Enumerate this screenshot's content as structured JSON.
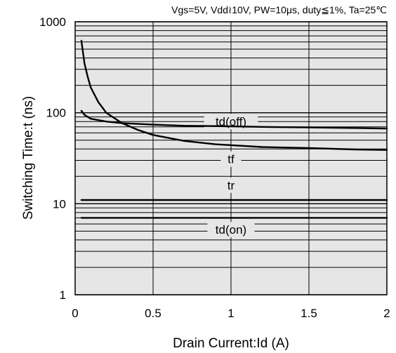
{
  "chart_data": {
    "type": "line",
    "conditions": "Vgs=5V, Vdd≀10V, PW=10μs, duty≦1%, Ta=25℃",
    "xlabel": "Drain Current:Id  (A)",
    "ylabel": "Switching Time:t  (ns)",
    "xlim": [
      0,
      2
    ],
    "ylim": [
      1,
      1000
    ],
    "yscale": "log",
    "xticks": [
      "0",
      "0.5",
      "1",
      "1.5",
      "2"
    ],
    "yticks": [
      "1",
      "10",
      "100",
      "1000"
    ],
    "grid": true,
    "series": [
      {
        "name": "td(off)",
        "x": [
          0.04,
          0.06,
          0.1,
          0.2,
          0.3,
          0.5,
          0.7,
          1.0,
          1.2,
          1.5,
          1.8,
          2.0
        ],
        "y": [
          105,
          95,
          86,
          80,
          77,
          74,
          72,
          71,
          70,
          69,
          68,
          67
        ]
      },
      {
        "name": "tf",
        "x": [
          0.04,
          0.06,
          0.08,
          0.1,
          0.15,
          0.2,
          0.3,
          0.4,
          0.5,
          0.7,
          0.9,
          1.2,
          1.5,
          1.8,
          2.0
        ],
        "y": [
          620,
          350,
          250,
          190,
          130,
          100,
          77,
          65,
          57,
          49,
          45,
          42,
          41,
          39.5,
          39
        ]
      },
      {
        "name": "tr",
        "x": [
          0.04,
          2.0
        ],
        "y": [
          11,
          11
        ]
      },
      {
        "name": "td(on)",
        "x": [
          0.04,
          2.0
        ],
        "y": [
          7,
          7
        ]
      }
    ]
  }
}
